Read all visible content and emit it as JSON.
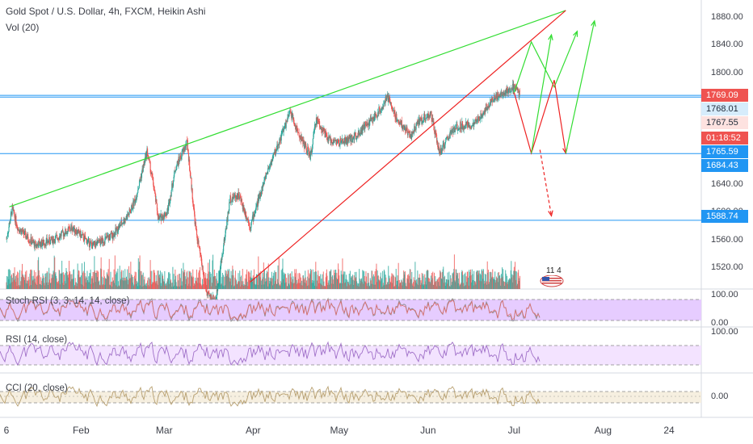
{
  "header": {
    "title": "Gold Spot / U.S. Dollar, 4h, FXCM, Heikin Ashi",
    "vol_label": "Vol (20)"
  },
  "indicators": {
    "stoch": "Stoch RSI (3, 3, 14, 14, close)",
    "rsi": "RSI (14, close)",
    "cci": "CCI (20, close)"
  },
  "event_badge": "11 4",
  "colors": {
    "up": "#26a69a",
    "down": "#ef5350",
    "green_line": "#33dd33",
    "red_line": "#ee2222",
    "hline": "#2196f3",
    "stoch_fill": "#e6ccff",
    "rsi_fill": "#f3e3ff",
    "cci_fill": "#f6efe0"
  },
  "chart_data": {
    "type": "candlestick",
    "symbol": "XAUUSD",
    "timeframe": "4h",
    "x_ticks": [
      "6",
      "Feb",
      "Mar",
      "Apr",
      "May",
      "Jun",
      "Jul",
      "Aug",
      "24"
    ],
    "y_ticks": [
      "1880.00",
      "1840.00",
      "1800.00",
      "1640.00",
      "1600.00",
      "1560.00",
      "1520.00"
    ],
    "y_range": [
      1490,
      1905
    ],
    "price_labels": [
      {
        "value": "1769.09",
        "bg": "#ef5350",
        "fg": "#ffffff"
      },
      {
        "value": "1768.01",
        "bg": "#d6ecfb",
        "fg": "#1e2a38"
      },
      {
        "value": "1767.55",
        "bg": "#fde2e0",
        "fg": "#1e2a38"
      },
      {
        "value": "01:18:52",
        "bg": "#ef5350",
        "fg": "#ffffff"
      },
      {
        "value": "1765.59",
        "bg": "#2196f3",
        "fg": "#ffffff"
      },
      {
        "value": "1684.43",
        "bg": "#2196f3",
        "fg": "#ffffff"
      },
      {
        "value": "1588.74",
        "bg": "#2196f3",
        "fg": "#ffffff"
      }
    ],
    "horizontal_levels": [
      1768.01,
      1765.59,
      1684.43,
      1588.74
    ],
    "price_anchors": [
      [
        "2020-01-06",
        1562
      ],
      [
        "2020-01-08",
        1605
      ],
      [
        "2020-01-10",
        1578
      ],
      [
        "2020-01-16",
        1553
      ],
      [
        "2020-01-22",
        1560
      ],
      [
        "2020-01-29",
        1578
      ],
      [
        "2020-02-05",
        1552
      ],
      [
        "2020-02-12",
        1567
      ],
      [
        "2020-02-18",
        1600
      ],
      [
        "2020-02-20",
        1620
      ],
      [
        "2020-02-24",
        1688
      ],
      [
        "2020-02-26",
        1645
      ],
      [
        "2020-02-28",
        1590
      ],
      [
        "2020-03-02",
        1600
      ],
      [
        "2020-03-05",
        1665
      ],
      [
        "2020-03-09",
        1700
      ],
      [
        "2020-03-12",
        1575
      ],
      [
        "2020-03-16",
        1480
      ],
      [
        "2020-03-19",
        1475
      ],
      [
        "2020-03-24",
        1620
      ],
      [
        "2020-03-27",
        1625
      ],
      [
        "2020-03-31",
        1580
      ],
      [
        "2020-04-06",
        1660
      ],
      [
        "2020-04-09",
        1690
      ],
      [
        "2020-04-14",
        1745
      ],
      [
        "2020-04-16",
        1720
      ],
      [
        "2020-04-21",
        1680
      ],
      [
        "2020-04-23",
        1735
      ],
      [
        "2020-04-27",
        1705
      ],
      [
        "2020-05-01",
        1700
      ],
      [
        "2020-05-05",
        1705
      ],
      [
        "2020-05-08",
        1715
      ],
      [
        "2020-05-14",
        1740
      ],
      [
        "2020-05-18",
        1765
      ],
      [
        "2020-05-21",
        1735
      ],
      [
        "2020-05-26",
        1710
      ],
      [
        "2020-05-29",
        1732
      ],
      [
        "2020-06-02",
        1740
      ],
      [
        "2020-06-05",
        1685
      ],
      [
        "2020-06-09",
        1715
      ],
      [
        "2020-06-12",
        1725
      ],
      [
        "2020-06-17",
        1725
      ],
      [
        "2020-06-22",
        1755
      ],
      [
        "2020-06-24",
        1765
      ],
      [
        "2020-06-29",
        1775
      ],
      [
        "2020-07-01",
        1780
      ],
      [
        "2020-07-03",
        1769
      ]
    ],
    "trendlines": [
      {
        "color": "green",
        "from": [
          "2020-01-07",
          1608
        ],
        "to": [
          "2020-07-19",
          1890
        ]
      },
      {
        "color": "red",
        "from": [
          "2020-03-31",
          1500
        ],
        "to": [
          "2020-07-19",
          1890
        ]
      }
    ],
    "projection_paths": [
      {
        "color": "green",
        "points": [
          [
            "2020-07-01",
            1772
          ],
          [
            "2020-07-07",
            1845
          ],
          [
            "2020-07-15",
            1780
          ],
          [
            "2020-07-23",
            1860
          ]
        ]
      },
      {
        "color": "red",
        "points": [
          [
            "2020-07-01",
            1772
          ],
          [
            "2020-07-07",
            1685
          ],
          [
            "2020-07-15",
            1790
          ],
          [
            "2020-07-19",
            1685
          ]
        ]
      },
      {
        "color": "green_secondary",
        "points": [
          [
            "2020-07-07",
            1685
          ],
          [
            "2020-07-14",
            1855
          ]
        ]
      },
      {
        "color": "green_secondary",
        "points": [
          [
            "2020-07-19",
            1685
          ],
          [
            "2020-07-29",
            1875
          ]
        ]
      },
      {
        "color": "red_dashed",
        "points": [
          [
            "2020-07-10",
            1690
          ],
          [
            "2020-07-14",
            1595
          ]
        ]
      }
    ],
    "volume_levels": "relative",
    "stoch_rsi_range": [
      0,
      100
    ],
    "stoch_rsi_bands": [
      20,
      80
    ],
    "rsi_range": [
      0,
      100
    ],
    "rsi_bands": [
      30,
      70
    ],
    "cci_center": 0
  }
}
